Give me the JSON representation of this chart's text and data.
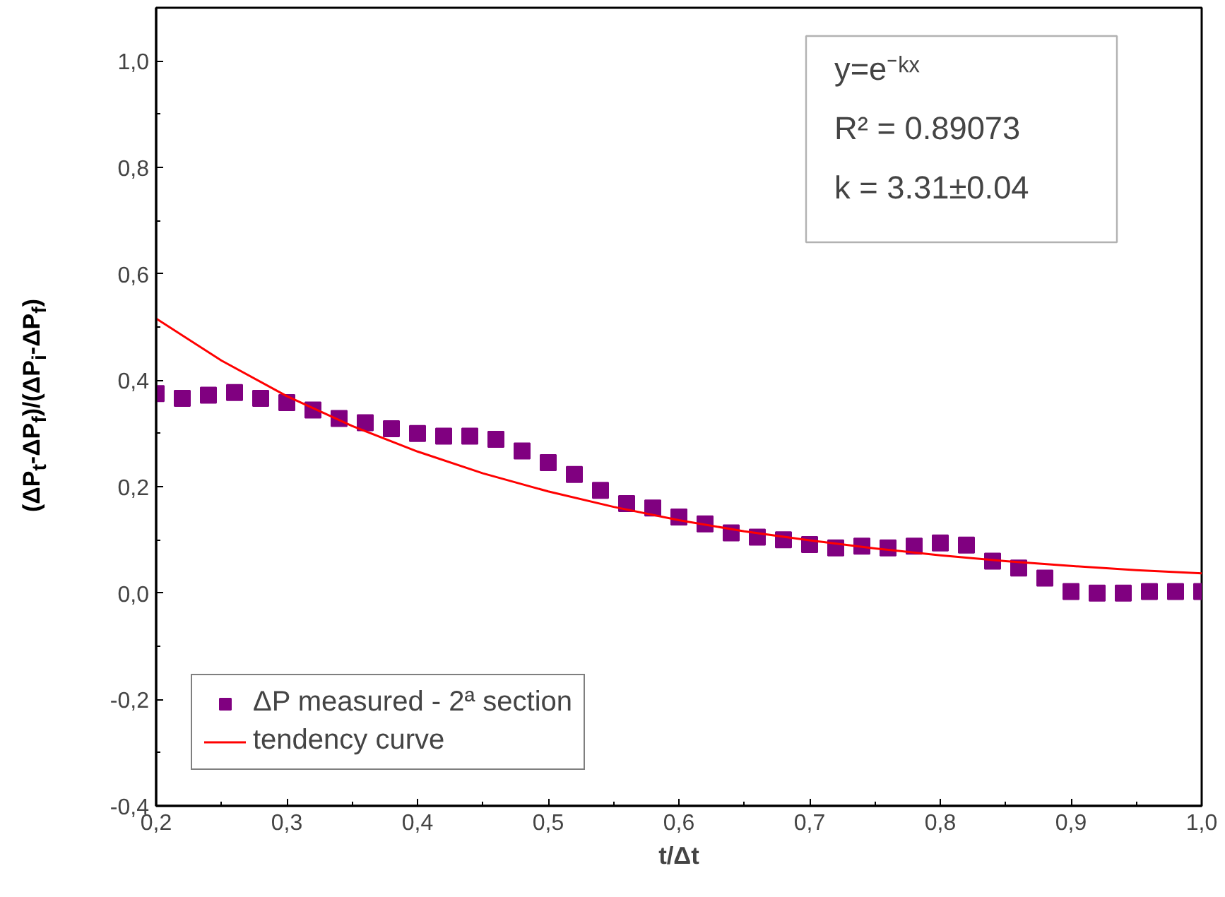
{
  "chart_data": {
    "type": "scatter",
    "xlabel": "t/Δt",
    "ylabel": "(ΔP$_{t}$-ΔP$_{f}$)/(ΔP$_{i}$-ΔP$_{f}$)",
    "xlim": [
      0.2,
      1.0
    ],
    "ylim": [
      -0.4,
      1.1
    ],
    "xticks": [
      {
        "value": 0.2,
        "label": "0,2"
      },
      {
        "value": 0.3,
        "label": "0,3"
      },
      {
        "value": 0.4,
        "label": "0,4"
      },
      {
        "value": 0.5,
        "label": "0,5"
      },
      {
        "value": 0.6,
        "label": "0,6"
      },
      {
        "value": 0.7,
        "label": "0,7"
      },
      {
        "value": 0.8,
        "label": "0,8"
      },
      {
        "value": 0.9,
        "label": "0,9"
      },
      {
        "value": 1.0,
        "label": "1,0"
      }
    ],
    "yticks": [
      {
        "value": -0.4,
        "label": "-0,4"
      },
      {
        "value": -0.2,
        "label": "-0,2"
      },
      {
        "value": 0.0,
        "label": "0,0"
      },
      {
        "value": 0.2,
        "label": "0,2"
      },
      {
        "value": 0.4,
        "label": "0,4"
      },
      {
        "value": 0.6,
        "label": "0,6"
      },
      {
        "value": 0.8,
        "label": "0,8"
      },
      {
        "value": 1.0,
        "label": "1,0"
      }
    ],
    "grid": false,
    "legend": "bottom left",
    "annotations": [
      "y=e⁻ᵏˣ",
      "R² = 0.89073",
      "k = 3.31±0.04"
    ],
    "series": [
      {
        "name": "ΔP measured - 2ª section",
        "marker": "square",
        "color": "#800080",
        "x": [
          0.2,
          0.22,
          0.24,
          0.26,
          0.28,
          0.3,
          0.32,
          0.34,
          0.36,
          0.38,
          0.4,
          0.42,
          0.44,
          0.46,
          0.48,
          0.5,
          0.52,
          0.54,
          0.56,
          0.58,
          0.6,
          0.62,
          0.64,
          0.66,
          0.68,
          0.7,
          0.72,
          0.74,
          0.76,
          0.78,
          0.8,
          0.82,
          0.84,
          0.86,
          0.88,
          0.9,
          0.92,
          0.94,
          0.96,
          0.98,
          1.0
        ],
        "values": [
          0.375,
          0.366,
          0.372,
          0.377,
          0.366,
          0.358,
          0.344,
          0.328,
          0.32,
          0.309,
          0.3,
          0.295,
          0.295,
          0.289,
          0.267,
          0.245,
          0.223,
          0.193,
          0.168,
          0.16,
          0.143,
          0.13,
          0.113,
          0.105,
          0.1,
          0.091,
          0.085,
          0.088,
          0.085,
          0.088,
          0.094,
          0.09,
          0.06,
          0.047,
          0.028,
          0.003,
          0.0,
          0.0,
          0.003,
          0.003,
          0.003
        ]
      },
      {
        "name": "tendency curve",
        "type": "line",
        "color": "#ff0000",
        "line_style": "solid",
        "x": [
          0.2,
          0.25,
          0.3,
          0.35,
          0.4,
          0.45,
          0.5,
          0.55,
          0.6,
          0.65,
          0.7,
          0.75,
          0.8,
          0.85,
          0.9,
          0.95,
          1.0
        ],
        "values": [
          0.516,
          0.437,
          0.37,
          0.314,
          0.266,
          0.225,
          0.191,
          0.162,
          0.137,
          0.116,
          0.099,
          0.084,
          0.071,
          0.06,
          0.051,
          0.043,
          0.037
        ]
      }
    ]
  }
}
